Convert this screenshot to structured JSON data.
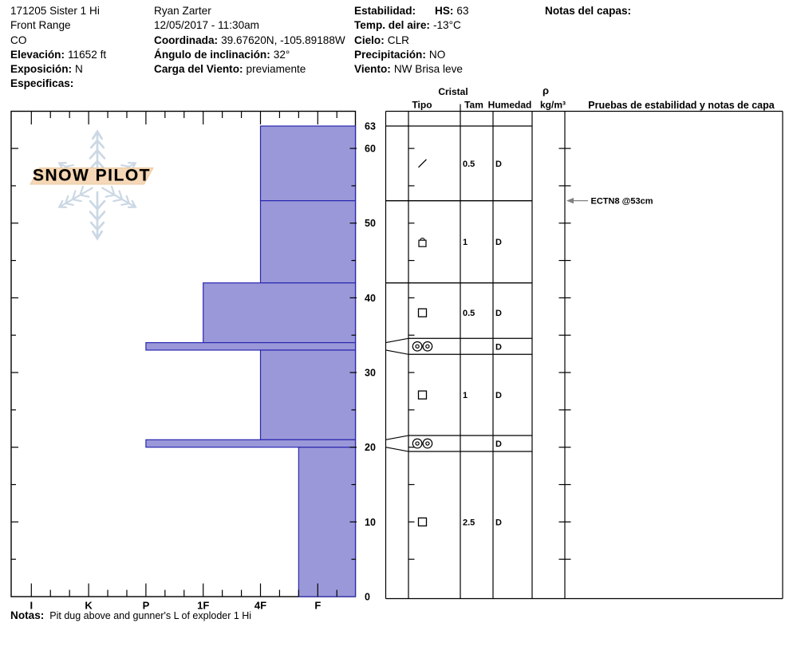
{
  "header": {
    "columns": [
      {
        "name": "pit-location",
        "lines": [
          {
            "label": "",
            "value": "171205 Sister 1 Hi"
          },
          {
            "label": "",
            "value": "Front Range"
          },
          {
            "label": "",
            "value": "CO"
          },
          {
            "label": "Elevación:",
            "value": "11652 ft"
          },
          {
            "label": "Exposición:",
            "value": "N"
          },
          {
            "label": "Especificas:",
            "value": ""
          }
        ]
      },
      {
        "name": "pit-observer",
        "lines": [
          {
            "label": "",
            "value": "Ryan Zarter"
          },
          {
            "label": "",
            "value": "12/05/2017 - 11:30am"
          },
          {
            "label": "Coordinada:",
            "value": "39.67620N, -105.89188W"
          },
          {
            "label": "Ángulo de inclinación:",
            "value": "32°"
          },
          {
            "label": "Carga del Viento:",
            "value": "previamente"
          }
        ]
      },
      {
        "name": "pit-conditions",
        "lines": [
          {
            "label": "Estabilidad:",
            "value": ""
          },
          {
            "label": "Temp. del aire:",
            "value": "-13°C"
          },
          {
            "label": "Cielo:",
            "value": "CLR"
          },
          {
            "label": "Precipitación:",
            "value": "NO"
          },
          {
            "label": "Viento:",
            "value": "NW Brisa leve"
          }
        ]
      },
      {
        "name": "pit-hs",
        "lines": [
          {
            "label": "HS:",
            "value": "63"
          }
        ]
      },
      {
        "name": "pit-layer-notes",
        "lines": [
          {
            "label": "Notas del capas:",
            "value": ""
          }
        ]
      }
    ]
  },
  "logo": {
    "text": "SNOW PILOT"
  },
  "table": {
    "header_cristal": "Cristal",
    "header_tipo": "Tipo",
    "header_tam": "Tam",
    "header_humedad": "Humedad",
    "header_rho": "ρ",
    "header_rho_units": "kg/m³",
    "header_pruebas": "Pruebas de estabilidad y notas de capa"
  },
  "footer": {
    "label": "Notas:",
    "value": "Pit dug above and gunner's L of exploder 1 Hi"
  },
  "chart_data": {
    "type": "bar",
    "subtype": "snow-profile-hardness",
    "orientation": "horizontal-bars-depth-axis",
    "title": "",
    "xlabel_categories_hardness": [
      "I",
      "K",
      "P",
      "1F",
      "4F",
      "F"
    ],
    "depth_axis_labels": [
      63,
      60,
      50,
      40,
      30,
      20,
      10,
      0
    ],
    "depth_max_cm": 63,
    "depth_minor_tick_step_cm": 5,
    "layers": [
      {
        "top_cm": 63,
        "bottom_cm": 53,
        "hardness": "4F",
        "grain_symbol": "slash",
        "size_mm": "0.5",
        "moisture": "D"
      },
      {
        "top_cm": 53,
        "bottom_cm": 42,
        "hardness": "4F",
        "grain_symbol": "padlock",
        "size_mm": "1",
        "moisture": "D"
      },
      {
        "top_cm": 42,
        "bottom_cm": 34,
        "hardness": "1F",
        "grain_symbol": "square",
        "size_mm": "0.5",
        "moisture": "D"
      },
      {
        "top_cm": 34,
        "bottom_cm": 33,
        "hardness": "P",
        "grain_symbol": "double-circle",
        "size_mm": "",
        "moisture": "D"
      },
      {
        "top_cm": 33,
        "bottom_cm": 21,
        "hardness": "4F",
        "grain_symbol": "square",
        "size_mm": "1",
        "moisture": "D"
      },
      {
        "top_cm": 21,
        "bottom_cm": 20,
        "hardness": "P",
        "grain_symbol": "double-circle",
        "size_mm": "",
        "moisture": "D"
      },
      {
        "top_cm": 20,
        "bottom_cm": 0,
        "hardness": "F+",
        "grain_symbol": "square",
        "size_mm": "2.5",
        "moisture": "D"
      }
    ],
    "stability_tests": [
      {
        "label": "ECTN8 @53cm",
        "depth_cm": 53
      }
    ],
    "colors": {
      "bar_fill": "#9a98d8",
      "bar_stroke": "#2a28b0",
      "line": "#000000",
      "test_arrow": "#808080",
      "logo_banner": "#f5d8b8",
      "logo_banner_edge": "#eccaa2",
      "logo_text_stroke": "#ddbb92",
      "logo_flake": "#cbd8e4"
    }
  }
}
